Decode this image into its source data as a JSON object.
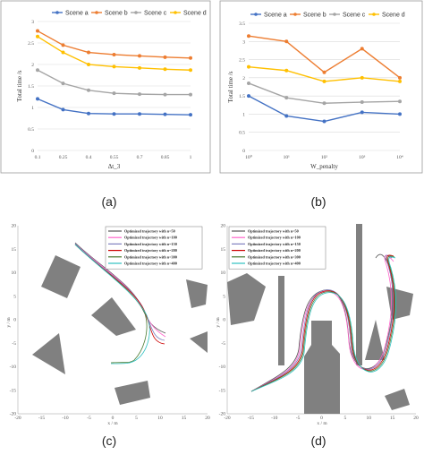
{
  "chart_data": [
    {
      "type": "line",
      "panel": "(a)",
      "x": [
        "0.1",
        "0.25",
        "0.4",
        "0.55",
        "0.7",
        "0.85",
        "1"
      ],
      "xlabel": "Δt_3",
      "ylabel": "Total time /s",
      "ylim": [
        0,
        3
      ],
      "yticks": [
        "0",
        "0.5",
        "1",
        "1.5",
        "2",
        "2.5",
        "3"
      ],
      "series": [
        {
          "name": "Scene a",
          "color": "#4472c4",
          "values": [
            1.2,
            0.95,
            0.86,
            0.85,
            0.85,
            0.84,
            0.83
          ]
        },
        {
          "name": "Scene b",
          "color": "#ed7d31",
          "values": [
            2.78,
            2.45,
            2.28,
            2.23,
            2.2,
            2.17,
            2.15
          ]
        },
        {
          "name": "Scene c",
          "color": "#a5a5a5",
          "values": [
            1.87,
            1.56,
            1.4,
            1.33,
            1.31,
            1.3,
            1.3
          ]
        },
        {
          "name": "Scene d",
          "color": "#ffc000",
          "values": [
            2.65,
            2.28,
            2.0,
            1.95,
            1.92,
            1.89,
            1.87
          ]
        }
      ],
      "grid": "horizontal",
      "legend": "top"
    },
    {
      "type": "line",
      "panel": "(b)",
      "x": [
        "10⁰",
        "10¹",
        "10²",
        "10³",
        "10⁴"
      ],
      "xlabel": "W_penalty",
      "ylabel": "Total time /s",
      "ylim": [
        0,
        3.5
      ],
      "yticks": [
        "0",
        "0.5",
        "1",
        "1.5",
        "2",
        "2.5",
        "3",
        "3.5"
      ],
      "series": [
        {
          "name": "Scene a",
          "color": "#4472c4",
          "values": [
            1.5,
            0.95,
            0.8,
            1.05,
            1.0
          ]
        },
        {
          "name": "Scene b",
          "color": "#ed7d31",
          "values": [
            3.15,
            3.0,
            2.15,
            2.8,
            2.0
          ]
        },
        {
          "name": "Scene c",
          "color": "#a5a5a5",
          "values": [
            1.85,
            1.45,
            1.3,
            1.33,
            1.35
          ]
        },
        {
          "name": "Scene d",
          "color": "#ffc000",
          "values": [
            2.3,
            2.2,
            1.9,
            2.0,
            1.9
          ]
        }
      ],
      "grid": "horizontal",
      "legend": "top"
    }
  ],
  "trajectory_legend": [
    {
      "label": "Optimized trajectory with n=50",
      "color": "#555555"
    },
    {
      "label": "Optimized trajectory with n=100",
      "color": "#ff66cc"
    },
    {
      "label": "Optimized trajectory with n=150",
      "color": "#8080c0"
    },
    {
      "label": "Optimized trajectory with n=200",
      "color": "#cc0000"
    },
    {
      "label": "Optimized trajectory with n=300",
      "color": "#4a7a30"
    },
    {
      "label": "Optimized trajectory with n=400",
      "color": "#30c0c0"
    }
  ],
  "panel_c": {
    "xlabel": "x / m",
    "ylabel": "y / m",
    "xticks": [
      "-20",
      "-15",
      "-10",
      "-5",
      "0",
      "5",
      "10",
      "15",
      "20"
    ],
    "yticks": [
      "20",
      "15",
      "10",
      "5",
      "0",
      "-5",
      "-10",
      "-15",
      "-20"
    ]
  },
  "panel_d": {
    "xlabel": "x / m",
    "ylabel": "y / m",
    "xticks": [
      "-20",
      "-15",
      "-10",
      "-5",
      "0",
      "5",
      "10",
      "15",
      "20"
    ],
    "yticks": [
      "20",
      "15",
      "10",
      "5",
      "0",
      "-5",
      "-10",
      "-15",
      "-20"
    ]
  },
  "captions": {
    "a": "(a)",
    "b": "(b)",
    "c": "(c)",
    "d": "(d)"
  }
}
